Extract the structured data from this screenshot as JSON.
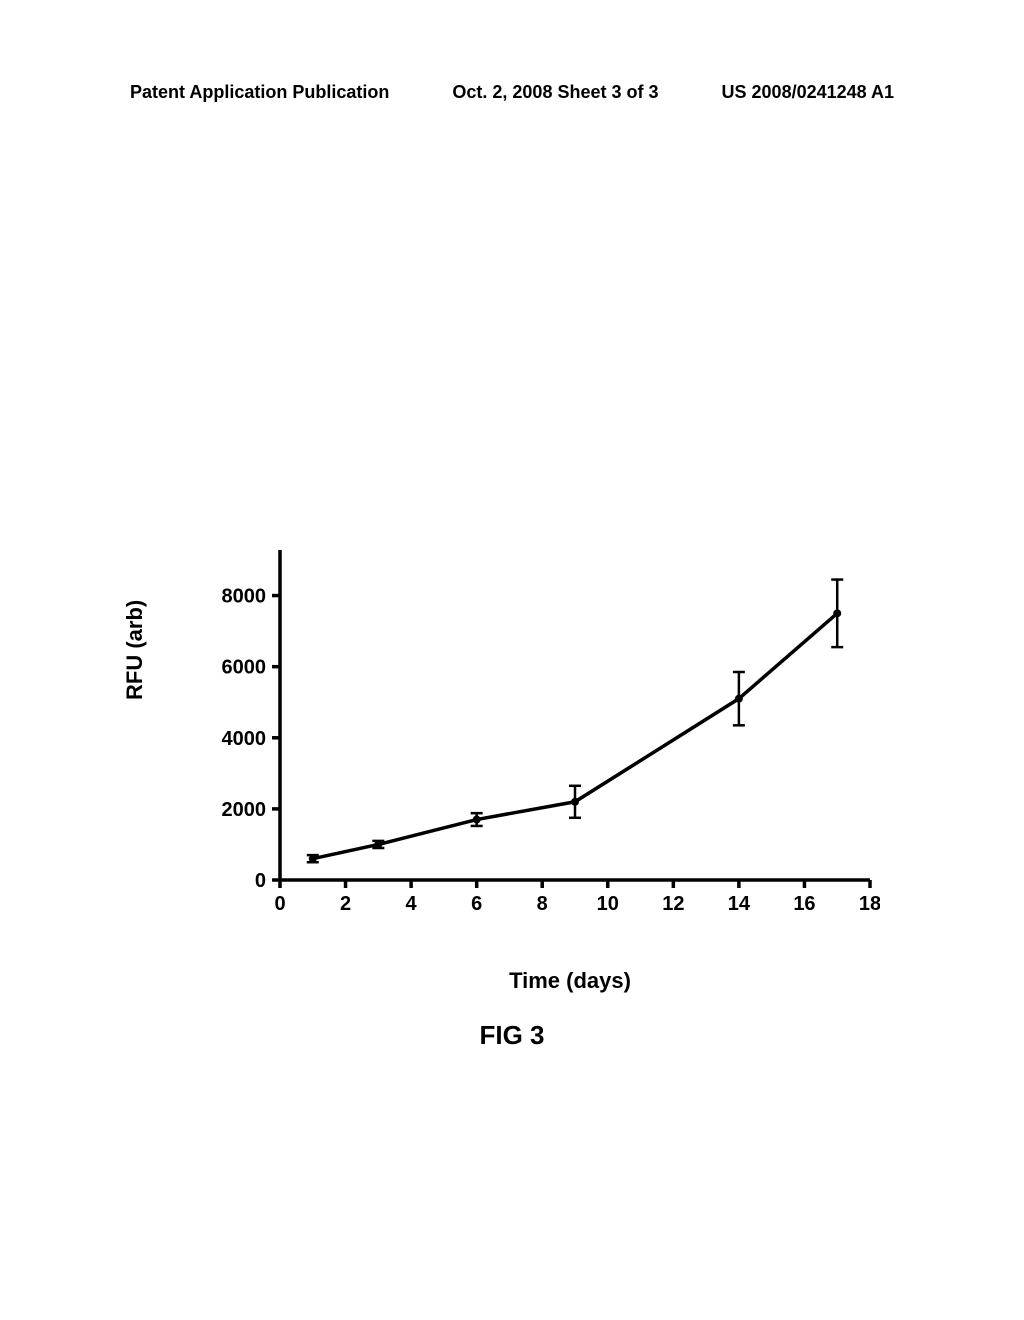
{
  "header": {
    "left": "Patent Application Publication",
    "center": "Oct. 2, 2008  Sheet 3 of 3",
    "right": "US 2008/0241248 A1"
  },
  "figure": {
    "caption": "FIG 3",
    "ylabel": "RFU (arb)",
    "xlabel": "Time (days)",
    "type": "line",
    "xlim": [
      0,
      18
    ],
    "ylim": [
      0,
      9000
    ],
    "xtick_step": 2,
    "ytick_step": 2000,
    "xticks": [
      0,
      2,
      4,
      6,
      8,
      10,
      12,
      14,
      16,
      18
    ],
    "yticks": [
      0,
      2000,
      4000,
      6000,
      8000
    ],
    "line_color": "#000000",
    "line_width": 3.5,
    "marker_color": "#000000",
    "marker_size": 4,
    "errorbar_color": "#000000",
    "errorbar_width": 2.5,
    "errorbar_cap": 6,
    "background_color": "#ffffff",
    "axis_color": "#000000",
    "axis_width": 3.5,
    "tick_fontsize": 20,
    "tick_fontweight": "bold",
    "label_fontsize": 22,
    "label_fontweight": "bold",
    "data": [
      {
        "x": 1,
        "y": 600,
        "err": 100
      },
      {
        "x": 3,
        "y": 1000,
        "err": 100
      },
      {
        "x": 6,
        "y": 1700,
        "err": 180
      },
      {
        "x": 9,
        "y": 2200,
        "err": 450
      },
      {
        "x": 14,
        "y": 5100,
        "err": 750
      },
      {
        "x": 17,
        "y": 7500,
        "err": 950
      }
    ]
  }
}
